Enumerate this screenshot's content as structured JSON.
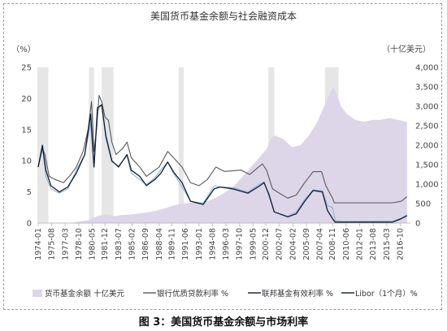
{
  "caption": "图 3：美国货币基金余额与市场利率",
  "chart_data": {
    "type": "line",
    "title": "美国货币基金余额与社会融资成本",
    "left_unit": "（%）",
    "right_unit": "（十亿美元）",
    "y_left": {
      "min": 0,
      "max": 25,
      "ticks": [
        "0",
        "5",
        "10",
        "15",
        "20",
        "25"
      ]
    },
    "y_right": {
      "min": 0,
      "max": 4000,
      "ticks": [
        "0",
        "500",
        "1,000",
        "1,500",
        "2,000",
        "2,500",
        "3,000",
        "3,500",
        "4,000"
      ]
    },
    "x_range": [
      1974.0,
      2018.0
    ],
    "x_ticks": [
      {
        "label": "1974-01",
        "x": 1974.0
      },
      {
        "label": "1975-08",
        "x": 1975.6
      },
      {
        "label": "1977-03",
        "x": 1977.2
      },
      {
        "label": "1978-10",
        "x": 1978.8
      },
      {
        "label": "1980-05",
        "x": 1980.4
      },
      {
        "label": "1981-12",
        "x": 1981.9
      },
      {
        "label": "1983-07",
        "x": 1983.5
      },
      {
        "label": "1985-02",
        "x": 1985.1
      },
      {
        "label": "1986-09",
        "x": 1986.7
      },
      {
        "label": "1988-04",
        "x": 1988.3
      },
      {
        "label": "1989-11",
        "x": 1989.8
      },
      {
        "label": "1991-06",
        "x": 1991.4
      },
      {
        "label": "1993-01",
        "x": 1993.0
      },
      {
        "label": "1994-08",
        "x": 1994.6
      },
      {
        "label": "1996-03",
        "x": 1996.2
      },
      {
        "label": "1997-10",
        "x": 1997.8
      },
      {
        "label": "1999-05",
        "x": 1999.4
      },
      {
        "label": "2000-12",
        "x": 2000.9
      },
      {
        "label": "2002-07",
        "x": 2002.5
      },
      {
        "label": "2004-02",
        "x": 2004.1
      },
      {
        "label": "2005-09",
        "x": 2005.7
      },
      {
        "label": "2007-04",
        "x": 2007.3
      },
      {
        "label": "2008-11",
        "x": 2008.8
      },
      {
        "label": "2010-06",
        "x": 2010.4
      },
      {
        "label": "2012-01",
        "x": 2012.0
      },
      {
        "label": "2013-08",
        "x": 2013.6
      },
      {
        "label": "2015-03",
        "x": 2015.2
      },
      {
        "label": "2016-10",
        "x": 2016.8
      }
    ],
    "recessions": [
      [
        1973.9,
        1975.2
      ],
      [
        1980.0,
        1980.6
      ],
      [
        1981.5,
        1982.9
      ],
      [
        1990.6,
        1991.2
      ],
      [
        2001.2,
        2001.9
      ],
      [
        2007.9,
        2009.5
      ]
    ],
    "colors": {
      "money_fund": "#ddd5e8",
      "prime_rate": "#595959",
      "fed_funds": "#0d1b33",
      "libor": "#8eb6d4",
      "recession": "#e6e6e6",
      "axis": "#bfbfbf"
    },
    "series": [
      {
        "name": "货币基金余额  十亿美元",
        "axis": "right",
        "kind": "area",
        "points": [
          [
            1974.0,
            2
          ],
          [
            1976.0,
            3
          ],
          [
            1978.0,
            10
          ],
          [
            1979.0,
            45
          ],
          [
            1980.0,
            75
          ],
          [
            1981.0,
            180
          ],
          [
            1982.0,
            230
          ],
          [
            1983.0,
            180
          ],
          [
            1984.0,
            210
          ],
          [
            1985.0,
            220
          ],
          [
            1986.0,
            250
          ],
          [
            1987.0,
            280
          ],
          [
            1988.0,
            320
          ],
          [
            1989.0,
            380
          ],
          [
            1990.0,
            450
          ],
          [
            1991.0,
            500
          ],
          [
            1992.0,
            520
          ],
          [
            1993.0,
            520
          ],
          [
            1994.0,
            560
          ],
          [
            1995.0,
            650
          ],
          [
            1996.0,
            780
          ],
          [
            1997.0,
            920
          ],
          [
            1998.0,
            1150
          ],
          [
            1999.0,
            1400
          ],
          [
            2000.0,
            1650
          ],
          [
            2001.0,
            1900
          ],
          [
            2001.6,
            2200
          ],
          [
            2002.0,
            2250
          ],
          [
            2003.0,
            2150
          ],
          [
            2004.0,
            1950
          ],
          [
            2005.0,
            2000
          ],
          [
            2006.0,
            2250
          ],
          [
            2007.0,
            2600
          ],
          [
            2008.0,
            3100
          ],
          [
            2008.5,
            3350
          ],
          [
            2008.9,
            3500
          ],
          [
            2009.2,
            3350
          ],
          [
            2009.8,
            3000
          ],
          [
            2010.5,
            2800
          ],
          [
            2011.5,
            2650
          ],
          [
            2012.5,
            2600
          ],
          [
            2013.5,
            2650
          ],
          [
            2014.5,
            2650
          ],
          [
            2015.5,
            2700
          ],
          [
            2016.5,
            2650
          ],
          [
            2017.6,
            2600
          ]
        ]
      },
      {
        "name": "银行优质贷款利率  %",
        "axis": "left",
        "kind": "line",
        "points": [
          [
            1974.0,
            9.0
          ],
          [
            1974.5,
            12.0
          ],
          [
            1974.8,
            11.0
          ],
          [
            1975.3,
            7.5
          ],
          [
            1976.0,
            7.0
          ],
          [
            1977.0,
            6.5
          ],
          [
            1977.8,
            7.7
          ],
          [
            1978.5,
            9.0
          ],
          [
            1979.3,
            11.5
          ],
          [
            1979.9,
            15.0
          ],
          [
            1980.3,
            19.5
          ],
          [
            1980.6,
            11.5
          ],
          [
            1980.9,
            15.0
          ],
          [
            1981.2,
            20.5
          ],
          [
            1981.5,
            19.5
          ],
          [
            1981.9,
            17.0
          ],
          [
            1982.3,
            16.5
          ],
          [
            1982.7,
            13.0
          ],
          [
            1983.2,
            11.0
          ],
          [
            1984.0,
            12.0
          ],
          [
            1984.5,
            13.0
          ],
          [
            1985.0,
            10.5
          ],
          [
            1986.0,
            9.0
          ],
          [
            1986.8,
            7.5
          ],
          [
            1987.5,
            8.2
          ],
          [
            1988.3,
            9.0
          ],
          [
            1989.3,
            11.5
          ],
          [
            1990.0,
            10.5
          ],
          [
            1991.0,
            9.0
          ],
          [
            1992.0,
            6.5
          ],
          [
            1993.0,
            6.0
          ],
          [
            1994.0,
            7.0
          ],
          [
            1995.0,
            9.0
          ],
          [
            1996.0,
            8.3
          ],
          [
            1998.0,
            8.5
          ],
          [
            1999.0,
            7.8
          ],
          [
            2000.5,
            9.5
          ],
          [
            2001.0,
            8.5
          ],
          [
            2001.7,
            5.5
          ],
          [
            2002.5,
            4.8
          ],
          [
            2003.5,
            4.0
          ],
          [
            2004.5,
            4.5
          ],
          [
            2005.5,
            6.5
          ],
          [
            2006.5,
            8.25
          ],
          [
            2007.5,
            8.25
          ],
          [
            2008.0,
            6.0
          ],
          [
            2008.8,
            4.0
          ],
          [
            2009.0,
            3.25
          ],
          [
            2015.9,
            3.25
          ],
          [
            2016.9,
            3.5
          ],
          [
            2017.6,
            4.25
          ]
        ]
      },
      {
        "name": "联邦基金有效利率  %",
        "axis": "left",
        "kind": "line",
        "points": [
          [
            1974.0,
            9.0
          ],
          [
            1974.5,
            12.5
          ],
          [
            1974.9,
            8.5
          ],
          [
            1975.5,
            6.0
          ],
          [
            1976.5,
            5.0
          ],
          [
            1977.5,
            5.8
          ],
          [
            1978.5,
            8.0
          ],
          [
            1979.5,
            11.0
          ],
          [
            1980.2,
            17.5
          ],
          [
            1980.6,
            9.0
          ],
          [
            1981.0,
            18.5
          ],
          [
            1981.5,
            19.0
          ],
          [
            1982.0,
            14.0
          ],
          [
            1982.7,
            10.0
          ],
          [
            1983.5,
            9.0
          ],
          [
            1984.5,
            11.0
          ],
          [
            1985.0,
            8.5
          ],
          [
            1986.0,
            7.5
          ],
          [
            1986.8,
            6.0
          ],
          [
            1987.8,
            7.0
          ],
          [
            1988.5,
            8.0
          ],
          [
            1989.3,
            9.8
          ],
          [
            1990.0,
            8.2
          ],
          [
            1991.0,
            6.5
          ],
          [
            1992.0,
            3.5
          ],
          [
            1993.5,
            3.0
          ],
          [
            1994.8,
            5.5
          ],
          [
            1995.5,
            5.8
          ],
          [
            1997.0,
            5.5
          ],
          [
            1998.8,
            4.8
          ],
          [
            2000.2,
            6.0
          ],
          [
            2000.7,
            6.5
          ],
          [
            2001.3,
            4.5
          ],
          [
            2001.9,
            1.8
          ],
          [
            2003.5,
            1.0
          ],
          [
            2004.5,
            1.5
          ],
          [
            2005.5,
            3.5
          ],
          [
            2006.5,
            5.25
          ],
          [
            2007.6,
            5.0
          ],
          [
            2008.2,
            2.0
          ],
          [
            2008.9,
            0.5
          ],
          [
            2009.1,
            0.15
          ],
          [
            2015.9,
            0.15
          ],
          [
            2016.9,
            0.7
          ],
          [
            2017.6,
            1.2
          ]
        ]
      },
      {
        "name": "Libor（1个月）%",
        "axis": "left",
        "kind": "line",
        "points": [
          [
            1974.0,
            9.0
          ],
          [
            1974.5,
            12.0
          ],
          [
            1974.9,
            7.5
          ],
          [
            1975.5,
            5.5
          ],
          [
            1976.5,
            4.8
          ],
          [
            1977.5,
            5.5
          ],
          [
            1978.5,
            8.5
          ],
          [
            1979.5,
            11.0
          ],
          [
            1980.2,
            16.0
          ],
          [
            1980.6,
            9.0
          ],
          [
            1981.0,
            18.0
          ],
          [
            1981.5,
            19.0
          ],
          [
            1982.0,
            13.5
          ],
          [
            1982.7,
            9.8
          ],
          [
            1983.5,
            9.2
          ],
          [
            1984.5,
            10.8
          ],
          [
            1985.0,
            8.0
          ],
          [
            1986.0,
            7.0
          ],
          [
            1986.8,
            6.2
          ],
          [
            1987.8,
            7.3
          ],
          [
            1988.5,
            8.5
          ],
          [
            1989.3,
            9.8
          ],
          [
            1990.0,
            8.0
          ],
          [
            1991.0,
            5.8
          ],
          [
            1992.0,
            3.5
          ],
          [
            1993.5,
            3.2
          ],
          [
            1994.8,
            6.0
          ],
          [
            1995.5,
            5.8
          ],
          [
            1997.0,
            5.7
          ],
          [
            1998.8,
            5.0
          ],
          [
            2000.2,
            6.3
          ],
          [
            2000.7,
            6.6
          ],
          [
            2001.3,
            4.2
          ],
          [
            2001.9,
            1.8
          ],
          [
            2003.5,
            1.1
          ],
          [
            2004.5,
            1.8
          ],
          [
            2005.5,
            3.8
          ],
          [
            2006.5,
            5.3
          ],
          [
            2007.6,
            5.2
          ],
          [
            2008.2,
            2.8
          ],
          [
            2008.8,
            2.5
          ],
          [
            2009.1,
            0.4
          ],
          [
            2010.0,
            0.25
          ],
          [
            2015.9,
            0.3
          ],
          [
            2016.9,
            0.8
          ],
          [
            2017.6,
            1.3
          ]
        ]
      }
    ]
  }
}
